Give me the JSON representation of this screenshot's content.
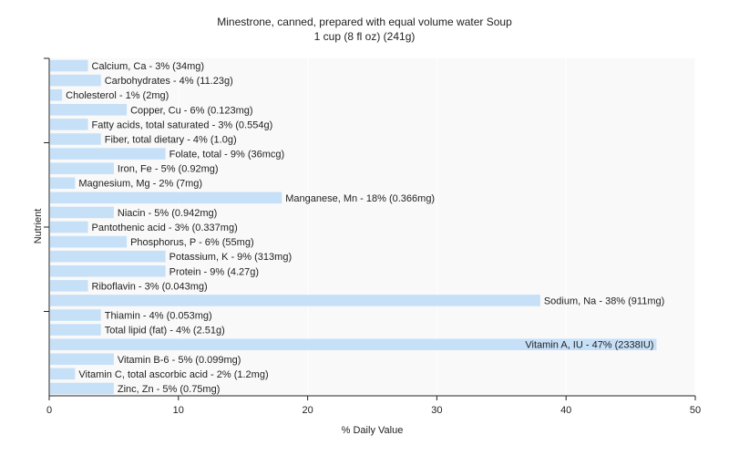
{
  "chart_data": {
    "type": "bar",
    "orientation": "horizontal",
    "title": "Minestrone, canned, prepared with equal volume water Soup",
    "subtitle": "1 cup (8 fl oz) (241g)",
    "xlabel": "% Daily Value",
    "ylabel": "Nutrient",
    "xlim": [
      0,
      50
    ],
    "xticks": [
      "0",
      "10",
      "20",
      "30",
      "40",
      "50"
    ],
    "grid": true,
    "categories": [
      "Calcium, Ca - 3% (34mg)",
      "Carbohydrates - 4% (11.23g)",
      "Cholesterol - 1% (2mg)",
      "Copper, Cu - 6% (0.123mg)",
      "Fatty acids, total saturated - 3% (0.554g)",
      "Fiber, total dietary - 4% (1.0g)",
      "Folate, total - 9% (36mcg)",
      "Iron, Fe - 5% (0.92mg)",
      "Magnesium, Mg - 2% (7mg)",
      "Manganese, Mn - 18% (0.366mg)",
      "Niacin - 5% (0.942mg)",
      "Pantothenic acid - 3% (0.337mg)",
      "Phosphorus, P - 6% (55mg)",
      "Potassium, K - 9% (313mg)",
      "Protein - 9% (4.27g)",
      "Riboflavin - 3% (0.043mg)",
      "Sodium, Na - 38% (911mg)",
      "Thiamin - 4% (0.053mg)",
      "Total lipid (fat) - 4% (2.51g)",
      "Vitamin A, IU - 47% (2338IU)",
      "Vitamin B-6 - 5% (0.099mg)",
      "Vitamin C, total ascorbic acid - 2% (1.2mg)",
      "Zinc, Zn - 5% (0.75mg)"
    ],
    "values": [
      3,
      4,
      1,
      6,
      3,
      4,
      9,
      5,
      2,
      18,
      5,
      3,
      6,
      9,
      9,
      3,
      38,
      4,
      4,
      47,
      5,
      2,
      5
    ],
    "colors": {
      "bar": "#c6e0f8",
      "plot_bg": "#f9f9f9",
      "grid": "#ffffff",
      "axis": "#222222"
    }
  }
}
